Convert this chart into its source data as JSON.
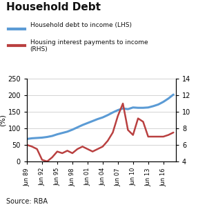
{
  "title": "Household Debt",
  "source": "Source: RBA",
  "ylabel_left": "(%)",
  "legend_blue": "Household debt to income (LHS)",
  "legend_red": "Housing interest payments to income\n(RHS)",
  "x_labels": [
    "Jun 89",
    "Jun 92",
    "Jun 95",
    "Jun 98",
    "Jun 01",
    "Jun 04",
    "Jun 07",
    "Jun 10",
    "Jun 13",
    "Jun 16"
  ],
  "ylim_left": [
    0,
    250
  ],
  "ylim_right": [
    4,
    14
  ],
  "yticks_left": [
    0,
    50,
    100,
    150,
    200,
    250
  ],
  "yticks_right": [
    4,
    6,
    8,
    10,
    12,
    14
  ],
  "blue_color": "#5b9bd5",
  "red_color": "#b94040",
  "blue_x": [
    1989,
    1990,
    1991,
    1992,
    1993,
    1994,
    1995,
    1996,
    1997,
    1998,
    1999,
    2000,
    2001,
    2002,
    2003,
    2004,
    2005,
    2006,
    2007,
    2008,
    2009,
    2010,
    2011,
    2012,
    2013,
    2014,
    2015,
    2016,
    2017,
    2018
  ],
  "blue_y": [
    68,
    70,
    71,
    72,
    74,
    77,
    82,
    86,
    90,
    96,
    103,
    110,
    116,
    122,
    128,
    133,
    140,
    148,
    155,
    160,
    158,
    163,
    162,
    162,
    163,
    167,
    172,
    180,
    190,
    202
  ],
  "red_x": [
    1989,
    1990,
    1991,
    1992,
    1993,
    1994,
    1995,
    1996,
    1997,
    1998,
    1999,
    2000,
    2001,
    2002,
    2003,
    2004,
    2005,
    2006,
    2007,
    2008,
    2009,
    2010,
    2011,
    2012,
    2013,
    2014,
    2015,
    2016,
    2017,
    2018
  ],
  "red_y": [
    6.0,
    5.8,
    5.5,
    4.2,
    4.0,
    4.5,
    5.2,
    5.0,
    5.3,
    5.0,
    5.5,
    5.8,
    5.5,
    5.2,
    5.5,
    5.8,
    6.5,
    7.5,
    9.5,
    11.0,
    7.8,
    7.2,
    9.2,
    8.8,
    7.0,
    7.0,
    7.0,
    7.0,
    7.2,
    7.5
  ],
  "background_color": "#ffffff",
  "grid_color": "#cccccc",
  "x_tick_positions": [
    1989,
    1992,
    1995,
    1998,
    2001,
    2004,
    2007,
    2010,
    2013,
    2016
  ],
  "xlim": [
    1989,
    2018.5
  ]
}
